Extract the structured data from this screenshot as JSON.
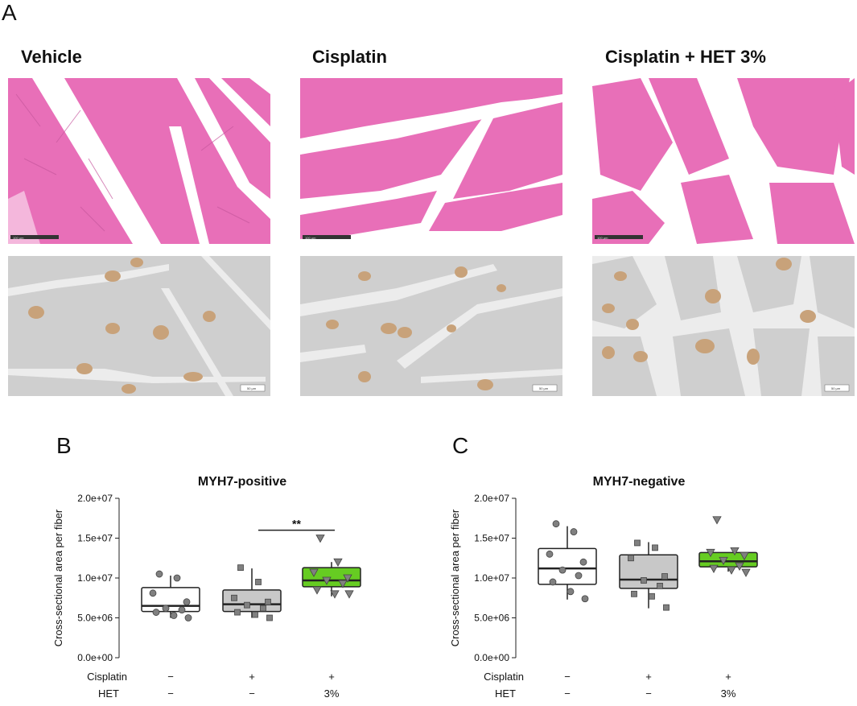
{
  "panel_a": {
    "letter": "A",
    "columns": [
      {
        "title": "Vehicle",
        "scale_he": "100 μm",
        "scale_ihc": "50 μm"
      },
      {
        "title": "Cisplatin",
        "scale_he": "100 μm",
        "scale_ihc": "50 μm"
      },
      {
        "title": "Cisplatin + HET 3%",
        "scale_he": "100 μm",
        "scale_ihc": "50 μm"
      }
    ]
  },
  "panel_b": {
    "letter": "B"
  },
  "panel_c": {
    "letter": "C"
  },
  "colors": {
    "vehicle_box": "#ffffff",
    "cisplatin_box": "#c8c8c8",
    "het_box": "#66cc22",
    "he_pink": "#e86fb8",
    "ihc_gray": "#cfcfcf",
    "ihc_brown": "#c8a27a"
  },
  "chart_data": [
    {
      "type": "box",
      "title": "MYH7-positive",
      "ylabel": "Cross-sectional area per fiber",
      "ylim": [
        0,
        20000000
      ],
      "yticks": [
        "0.0e+00",
        "5.0e+06",
        "1.0e+07",
        "1.5e+07",
        "2.0e+07"
      ],
      "ytick_values": [
        0,
        5000000,
        10000000,
        15000000,
        20000000
      ],
      "groups": [
        {
          "cisplatin": "−",
          "het": "−",
          "q1": 5800000,
          "median": 6500000,
          "q3": 8800000,
          "whisker_low": 5000000,
          "whisker_high": 10300000,
          "points": [
            10500000,
            10000000,
            8100000,
            7000000,
            6200000,
            6000000,
            5700000,
            5300000,
            5000000
          ],
          "marker": "circle"
        },
        {
          "cisplatin": "+",
          "het": "−",
          "q1": 5800000,
          "median": 6700000,
          "q3": 8500000,
          "whisker_low": 5000000,
          "whisker_high": 11200000,
          "points": [
            11300000,
            9500000,
            7500000,
            7000000,
            6600000,
            6200000,
            5700000,
            5400000,
            5000000
          ],
          "marker": "square"
        },
        {
          "cisplatin": "+",
          "het": "3%",
          "q1": 8900000,
          "median": 9700000,
          "q3": 11300000,
          "whisker_low": 7700000,
          "whisker_high": 12000000,
          "points": [
            15000000,
            12000000,
            10700000,
            10000000,
            9700000,
            9300000,
            8500000,
            8000000,
            8000000
          ],
          "marker": "triangle"
        }
      ],
      "annotation": {
        "text": "**",
        "between": [
          1,
          2
        ],
        "y": 16000000
      },
      "row_labels": [
        "Cisplatin",
        "HET"
      ]
    },
    {
      "type": "box",
      "title": "MYH7-negative",
      "ylabel": "Cross-sectional area per fiber",
      "ylim": [
        0,
        20000000
      ],
      "yticks": [
        "0.0e+00",
        "5.0e+06",
        "1.0e+07",
        "1.5e+07",
        "2.0e+07"
      ],
      "ytick_values": [
        0,
        5000000,
        10000000,
        15000000,
        20000000
      ],
      "groups": [
        {
          "cisplatin": "−",
          "het": "−",
          "q1": 9200000,
          "median": 11200000,
          "q3": 13700000,
          "whisker_low": 7300000,
          "whisker_high": 16500000,
          "points": [
            16800000,
            15800000,
            13000000,
            12000000,
            11000000,
            10300000,
            9500000,
            8300000,
            7400000
          ],
          "marker": "circle"
        },
        {
          "cisplatin": "+",
          "het": "−",
          "q1": 8700000,
          "median": 9800000,
          "q3": 12900000,
          "whisker_low": 6200000,
          "whisker_high": 14500000,
          "points": [
            14400000,
            13800000,
            12500000,
            10200000,
            9700000,
            9000000,
            8000000,
            7700000,
            6300000
          ],
          "marker": "square"
        },
        {
          "cisplatin": "+",
          "het": "3%",
          "q1": 11400000,
          "median": 12100000,
          "q3": 13200000,
          "whisker_low": 10800000,
          "whisker_high": 13200000,
          "points": [
            17300000,
            13400000,
            13200000,
            12800000,
            12200000,
            11500000,
            11200000,
            11000000,
            10700000
          ],
          "marker": "triangle"
        }
      ],
      "row_labels": [
        "Cisplatin",
        "HET"
      ]
    }
  ]
}
